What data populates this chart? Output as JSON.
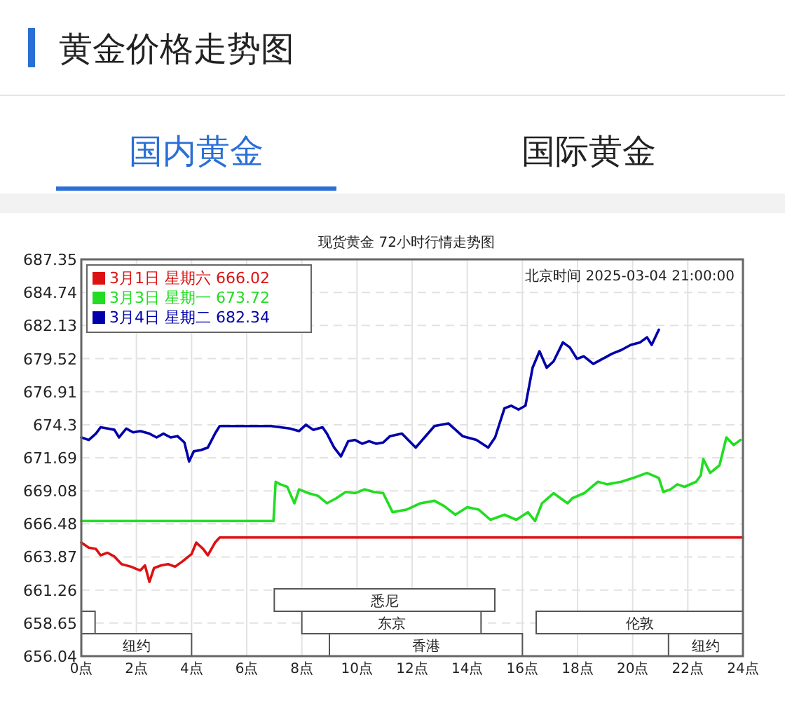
{
  "chart_data": {
    "type": "line",
    "title": "黄金价格走势图",
    "subtitle": "现货黄金 72小时行情走势图",
    "annotations": [
      "国内黄金",
      "国际黄金",
      "北京时间 2025-03-04 21:00:00"
    ],
    "xlim": [
      0,
      24
    ],
    "xticks": [
      {
        "value": 0,
        "label": "0点"
      },
      {
        "value": 2,
        "label": "2点"
      },
      {
        "value": 4,
        "label": "4点"
      },
      {
        "value": 6,
        "label": "6点"
      },
      {
        "value": 8,
        "label": "8点"
      },
      {
        "value": 10,
        "label": "10点"
      },
      {
        "value": 12,
        "label": "12点"
      },
      {
        "value": 14,
        "label": "14点"
      },
      {
        "value": 16,
        "label": "16点"
      },
      {
        "value": 18,
        "label": "18点"
      },
      {
        "value": 20,
        "label": "20点"
      },
      {
        "value": 22,
        "label": "22点"
      },
      {
        "value": 24,
        "label": "24点"
      }
    ],
    "ylim": [
      656.04,
      687.35
    ],
    "yticks": [
      656.04,
      658.65,
      661.26,
      663.87,
      666.48,
      669.08,
      671.69,
      674.3,
      676.91,
      679.52,
      682.13,
      684.74,
      687.35
    ],
    "grid": true,
    "legend": "top left",
    "line_style": "solid",
    "bands": [
      {
        "axis": "x",
        "from": 0,
        "to": 4,
        "label": "纽约",
        "color": "#ffffff"
      },
      {
        "axis": "x",
        "from": 9,
        "to": 16,
        "label": "香港",
        "color": "#ffffff"
      },
      {
        "axis": "x",
        "from": 21.3,
        "to": 24,
        "label": "纽约",
        "color": "#ffffff"
      },
      {
        "axis": "x",
        "from": 0,
        "to": 0.5,
        "label": null,
        "color": "#ffffff"
      },
      {
        "axis": "x",
        "from": 8,
        "to": 14.5,
        "label": "东京",
        "color": "#ffffff"
      },
      {
        "axis": "x",
        "from": 16.5,
        "to": 24,
        "label": "伦敦",
        "color": "#ffffff"
      },
      {
        "axis": "x",
        "from": 7,
        "to": 15,
        "label": "悉尼",
        "color": "#ffffff"
      }
    ],
    "series": [
      {
        "name": "3月1日 星期六 666.02",
        "color": "#dd1111",
        "x": [
          0,
          0.27,
          0.53,
          0.7,
          0.95,
          1.2,
          1.46,
          1.8,
          2.14,
          2.31,
          2.47,
          2.64,
          2.9,
          3.15,
          3.4,
          3.66,
          4.0,
          4.17,
          4.42,
          4.59,
          4.85,
          5.02,
          24
        ],
        "values": [
          665.0,
          664.6,
          664.5,
          664.0,
          664.2,
          663.9,
          663.3,
          663.1,
          662.8,
          663.2,
          661.9,
          663.0,
          663.2,
          663.3,
          663.1,
          663.5,
          664.1,
          665.0,
          664.5,
          664.0,
          665.0,
          665.4,
          665.4
        ]
      },
      {
        "name": "3月3日 星期一 673.72",
        "color": "#22dd22",
        "x": [
          0,
          6.97,
          7.05,
          7.22,
          7.47,
          7.73,
          7.9,
          8.24,
          8.58,
          8.91,
          9.25,
          9.59,
          9.93,
          10.27,
          10.61,
          10.95,
          11.29,
          11.79,
          12.3,
          12.81,
          13.15,
          13.57,
          14.0,
          14.42,
          14.84,
          15.35,
          15.78,
          16.2,
          16.46,
          16.71,
          17.13,
          17.64,
          17.81,
          18.24,
          18.74,
          19.08,
          19.59,
          20.02,
          20.52,
          20.95,
          21.11,
          21.37,
          21.62,
          21.88,
          22.3,
          22.47,
          22.56,
          22.81,
          23.15,
          23.4,
          23.66,
          23.91
        ],
        "values": [
          666.7,
          666.7,
          669.8,
          669.6,
          669.4,
          668.1,
          669.2,
          668.9,
          668.7,
          668.1,
          668.5,
          669.0,
          668.9,
          669.2,
          669.0,
          668.9,
          667.4,
          667.6,
          668.1,
          668.3,
          667.9,
          667.2,
          667.8,
          667.6,
          666.8,
          667.2,
          666.8,
          667.4,
          666.7,
          668.1,
          668.9,
          668.1,
          668.5,
          668.9,
          669.8,
          669.6,
          669.8,
          670.1,
          670.5,
          670.1,
          669.0,
          669.2,
          669.6,
          669.4,
          669.8,
          670.3,
          671.6,
          670.5,
          671.1,
          673.3,
          672.7,
          673.1
        ]
      },
      {
        "name": "3月4日 星期二 682.34",
        "color": "#0000aa",
        "x": [
          0,
          0.27,
          0.53,
          0.7,
          0.95,
          1.2,
          1.37,
          1.63,
          1.88,
          2.14,
          2.47,
          2.73,
          2.98,
          3.24,
          3.49,
          3.74,
          3.91,
          4.08,
          4.34,
          4.59,
          4.85,
          5.02,
          6.88,
          7.22,
          7.56,
          7.9,
          8.15,
          8.41,
          8.75,
          8.91,
          9.17,
          9.42,
          9.68,
          9.93,
          10.19,
          10.44,
          10.7,
          10.95,
          11.2,
          11.63,
          12.13,
          12.81,
          13.32,
          13.83,
          14.33,
          14.76,
          15.01,
          15.35,
          15.6,
          15.86,
          16.11,
          16.37,
          16.62,
          16.88,
          17.13,
          17.47,
          17.72,
          17.98,
          18.23,
          18.57,
          18.91,
          19.25,
          19.59,
          19.93,
          20.27,
          20.52,
          20.69,
          20.95
        ],
        "values": [
          673.3,
          673.1,
          673.6,
          674.1,
          674.0,
          673.9,
          673.3,
          674.0,
          673.7,
          673.8,
          673.6,
          673.3,
          673.6,
          673.3,
          673.4,
          672.9,
          671.4,
          672.2,
          672.3,
          672.5,
          673.6,
          674.2,
          674.2,
          674.1,
          674.0,
          673.8,
          674.3,
          673.9,
          674.1,
          673.6,
          672.5,
          671.8,
          673.0,
          673.1,
          672.8,
          673.0,
          672.8,
          672.9,
          673.4,
          673.6,
          672.5,
          674.2,
          674.4,
          673.4,
          673.1,
          672.5,
          673.3,
          675.6,
          675.8,
          675.5,
          675.8,
          678.8,
          680.1,
          678.8,
          679.3,
          680.8,
          680.4,
          679.5,
          679.7,
          679.1,
          679.5,
          679.9,
          680.2,
          680.6,
          680.8,
          681.2,
          680.6,
          681.8
        ]
      }
    ]
  }
}
